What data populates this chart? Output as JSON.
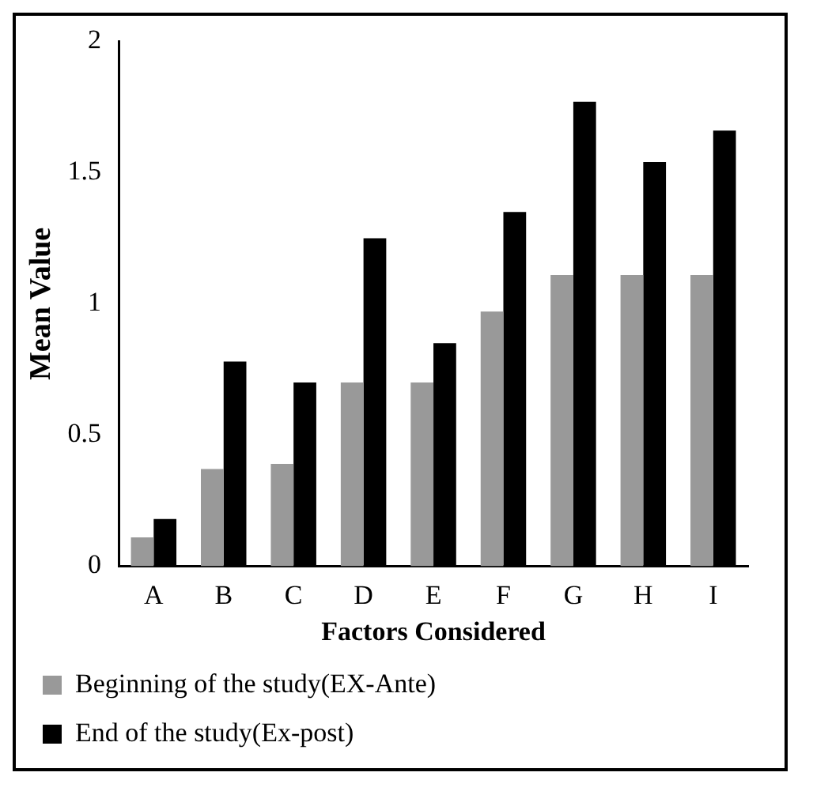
{
  "chart_data": {
    "type": "bar",
    "xlabel": "Factors Considered",
    "ylabel": "Mean Value",
    "categories": [
      "A",
      "B",
      "C",
      "D",
      "E",
      "F",
      "G",
      "H",
      "I"
    ],
    "series": [
      {
        "name": "Beginning of the study(EX-Ante)",
        "color": "#999999",
        "values": [
          0.11,
          0.37,
          0.39,
          0.7,
          0.7,
          0.97,
          1.11,
          1.11,
          1.11
        ]
      },
      {
        "name": "End of the study(Ex-post)",
        "color": "#000000",
        "values": [
          0.18,
          0.78,
          0.7,
          1.25,
          0.85,
          1.35,
          1.77,
          1.54,
          1.66
        ]
      }
    ],
    "ylim": [
      0,
      2
    ],
    "yticks": [
      0,
      0.5,
      1,
      1.5,
      2
    ],
    "grid": false,
    "legend": "bottom"
  }
}
